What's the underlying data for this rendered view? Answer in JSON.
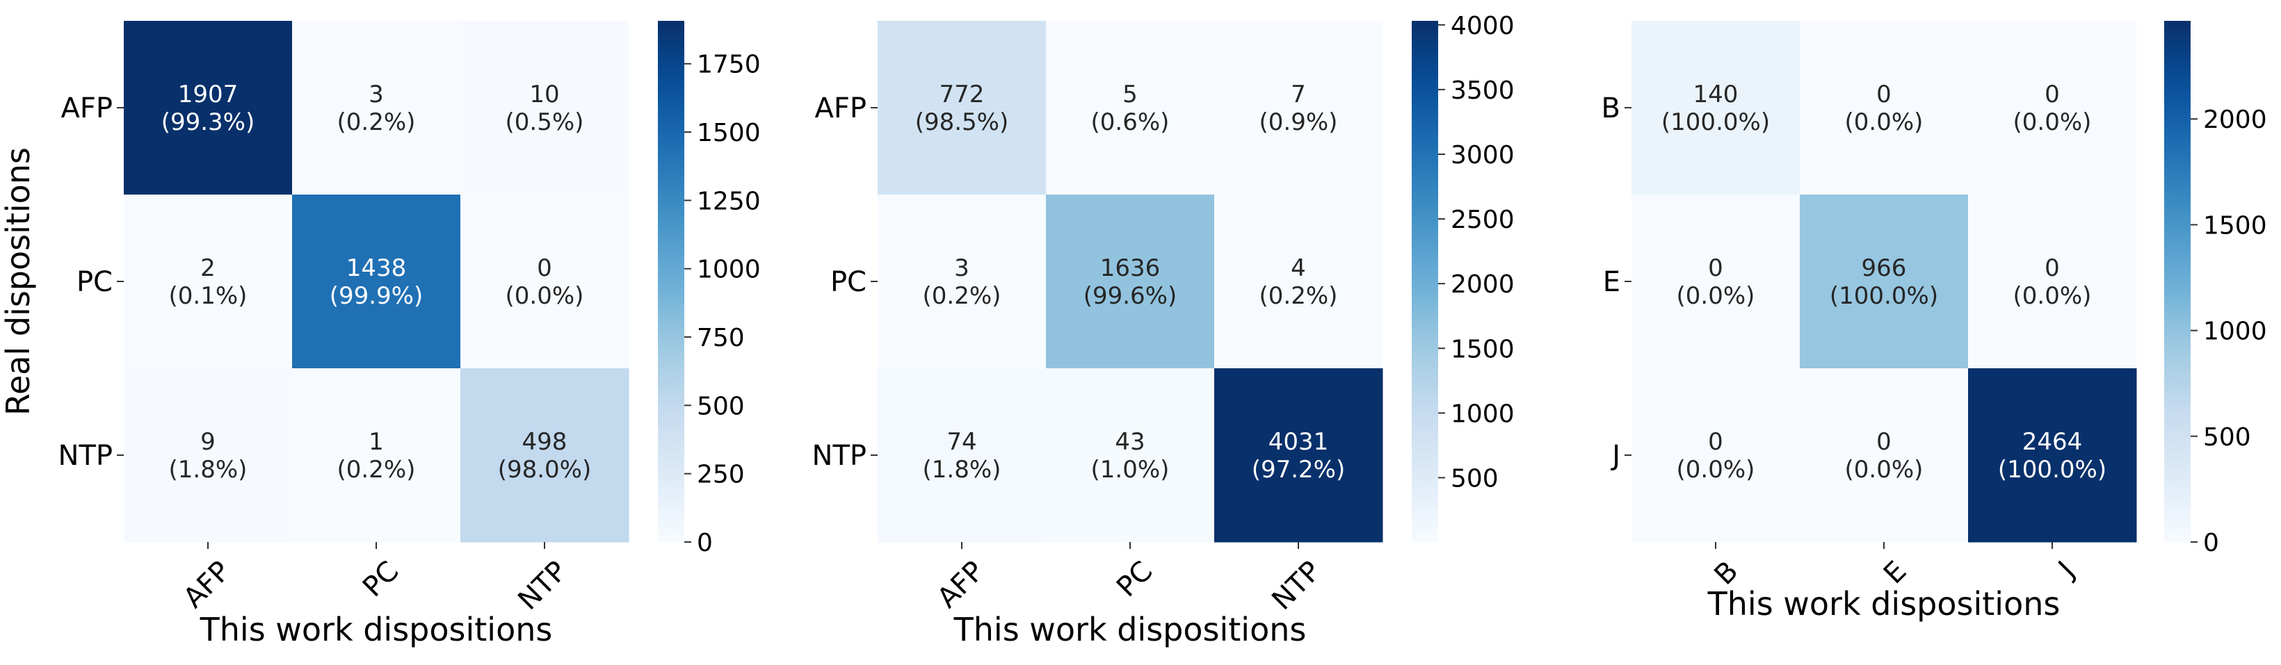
{
  "chart_data": [
    {
      "type": "heatmap",
      "ylabel": "Real dispositions",
      "xlabel": "This work dispositions",
      "row_labels": [
        "AFP",
        "PC",
        "NTP"
      ],
      "col_labels": [
        "AFP",
        "PC",
        "NTP"
      ],
      "values": [
        [
          1907,
          3,
          10
        ],
        [
          2,
          1438,
          0
        ],
        [
          9,
          1,
          498
        ]
      ],
      "percents": [
        [
          "99.3%",
          "0.2%",
          "0.5%"
        ],
        [
          "0.1%",
          "99.9%",
          "0.0%"
        ],
        [
          "1.8%",
          "0.2%",
          "98.0%"
        ]
      ],
      "colorbar": {
        "min": 0,
        "max": 1907,
        "ticks": [
          0,
          250,
          500,
          750,
          1000,
          1250,
          1500,
          1750
        ]
      },
      "colormap": "Blues"
    },
    {
      "type": "heatmap",
      "ylabel": "",
      "xlabel": "This work dispositions",
      "row_labels": [
        "AFP",
        "PC",
        "NTP"
      ],
      "col_labels": [
        "AFP",
        "PC",
        "NTP"
      ],
      "values": [
        [
          772,
          5,
          7
        ],
        [
          3,
          1636,
          4
        ],
        [
          74,
          43,
          4031
        ]
      ],
      "percents": [
        [
          "98.5%",
          "0.6%",
          "0.9%"
        ],
        [
          "0.2%",
          "99.6%",
          "0.2%"
        ],
        [
          "1.8%",
          "1.0%",
          "97.2%"
        ]
      ],
      "colorbar": {
        "min": 3,
        "max": 4031,
        "ticks": [
          500,
          1000,
          1500,
          2000,
          2500,
          3000,
          3500,
          4000
        ]
      },
      "colormap": "Blues"
    },
    {
      "type": "heatmap",
      "ylabel": "",
      "xlabel": "This work dispositions",
      "row_labels": [
        "B",
        "E",
        "J"
      ],
      "col_labels": [
        "B",
        "E",
        "J"
      ],
      "values": [
        [
          140,
          0,
          0
        ],
        [
          0,
          966,
          0
        ],
        [
          0,
          0,
          2464
        ]
      ],
      "percents": [
        [
          "100.0%",
          "0.0%",
          "0.0%"
        ],
        [
          "0.0%",
          "100.0%",
          "0.0%"
        ],
        [
          "0.0%",
          "0.0%",
          "100.0%"
        ]
      ],
      "colorbar": {
        "min": 0,
        "max": 2464,
        "ticks": [
          0,
          500,
          1000,
          1500,
          2000
        ]
      },
      "colormap": "Blues"
    }
  ]
}
